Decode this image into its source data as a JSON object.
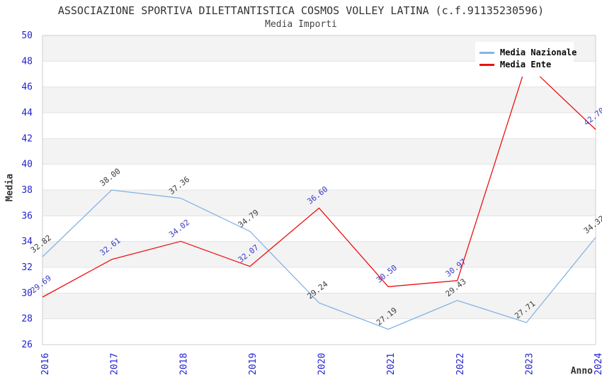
{
  "header": {
    "title": "ASSOCIAZIONE SPORTIVA DILETTANTISTICA COSMOS VOLLEY LATINA (c.f.91135230596)",
    "subtitle": "Media Importi"
  },
  "chart_data": {
    "type": "line",
    "title": "ASSOCIAZIONE SPORTIVA DILETTANTISTICA COSMOS VOLLEY LATINA (c.f.91135230596)",
    "subtitle": "Media Importi",
    "x": [
      "2016",
      "2017",
      "2018",
      "2019",
      "2020",
      "2021",
      "2022",
      "2023",
      "2024"
    ],
    "xlabel": "Anno",
    "ylabel": "Media",
    "ylim": [
      26,
      50
    ],
    "ytick_step": 2,
    "yticks": [
      26,
      28,
      30,
      32,
      34,
      36,
      38,
      40,
      42,
      44,
      46,
      48,
      50
    ],
    "grid": "alternating horizontal shaded bands every 2 units",
    "legend_position": "top-right",
    "point_labels_rotation_deg": -38,
    "series": [
      {
        "name": "Media Nazionale",
        "color": "#84b4e4",
        "label_color": "#3c3c3c",
        "values": [
          32.82,
          38.0,
          37.36,
          34.79,
          29.24,
          27.19,
          29.43,
          27.71,
          34.32
        ]
      },
      {
        "name": "Media Ente",
        "color": "#ed1111",
        "label_color": "#3a3ac8",
        "values": [
          29.69,
          32.61,
          34.02,
          32.07,
          36.6,
          30.5,
          30.97,
          47.8,
          42.7
        ],
        "note": "2023 point label is hidden behind the legend box; value estimated from line position"
      }
    ],
    "style": {
      "band_fill": "#f3f3f3",
      "grid_line": "#e3e3e3",
      "spine": "#cfcfcf",
      "tick_label_color": "#2323cf",
      "axis_title_color": "#333333",
      "background": "#ffffff"
    }
  }
}
